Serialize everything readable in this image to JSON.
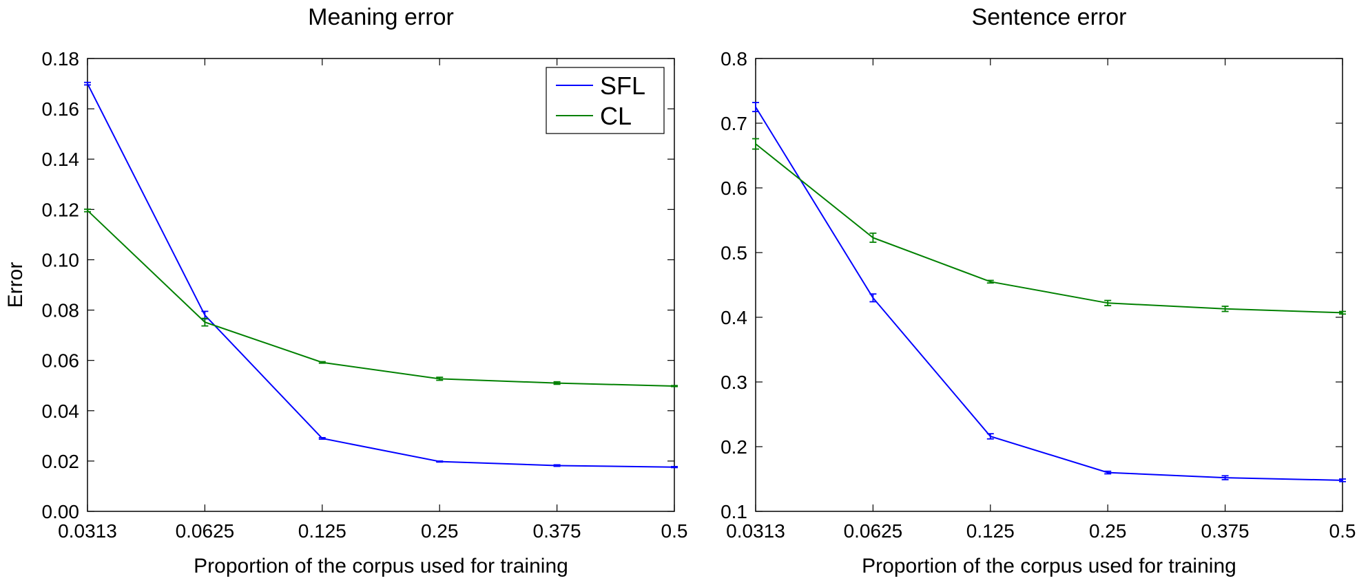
{
  "chart_data": [
    {
      "type": "line",
      "title": "Meaning error",
      "xlabel": "Proportion of the corpus used for training",
      "ylabel": "Error",
      "categories": [
        "0.0313",
        "0.0625",
        "0.125",
        "0.25",
        "0.375",
        "0.5"
      ],
      "ylim": [
        0.0,
        0.18
      ],
      "yticks": [
        "0.00",
        "0.02",
        "0.04",
        "0.06",
        "0.08",
        "0.10",
        "0.12",
        "0.14",
        "0.16",
        "0.18"
      ],
      "grid": false,
      "legend": {
        "placement": "top-right",
        "entries": [
          "SFL",
          "CL"
        ]
      },
      "series": [
        {
          "name": "SFL",
          "color": "#0000ff",
          "values": [
            0.17,
            0.078,
            0.029,
            0.0198,
            0.0182,
            0.0176
          ],
          "errors": [
            0.0005,
            0.0015,
            0.0003,
            0.0002,
            0.0003,
            0.0002
          ]
        },
        {
          "name": "CL",
          "color": "#008000",
          "values": [
            0.1196,
            0.0752,
            0.0592,
            0.0527,
            0.051,
            0.0498
          ],
          "errors": [
            0.0005,
            0.0015,
            0.0003,
            0.0006,
            0.0005,
            0.0002
          ]
        }
      ]
    },
    {
      "type": "line",
      "title": "Sentence error",
      "xlabel": "Proportion of the corpus used for training",
      "ylabel": "",
      "categories": [
        "0.0313",
        "0.0625",
        "0.125",
        "0.25",
        "0.375",
        "0.5"
      ],
      "ylim": [
        0.1,
        0.8
      ],
      "yticks": [
        "0.1",
        "0.2",
        "0.3",
        "0.4",
        "0.5",
        "0.6",
        "0.7",
        "0.8"
      ],
      "grid": false,
      "series": [
        {
          "name": "SFL",
          "color": "#0000ff",
          "values": [
            0.725,
            0.43,
            0.216,
            0.16,
            0.152,
            0.148
          ],
          "errors": [
            0.007,
            0.006,
            0.004,
            0.002,
            0.003,
            0.002
          ]
        },
        {
          "name": "CL",
          "color": "#008000",
          "values": [
            0.668,
            0.523,
            0.455,
            0.422,
            0.413,
            0.407
          ],
          "errors": [
            0.008,
            0.007,
            0.002,
            0.004,
            0.004,
            0.002
          ]
        }
      ]
    }
  ]
}
